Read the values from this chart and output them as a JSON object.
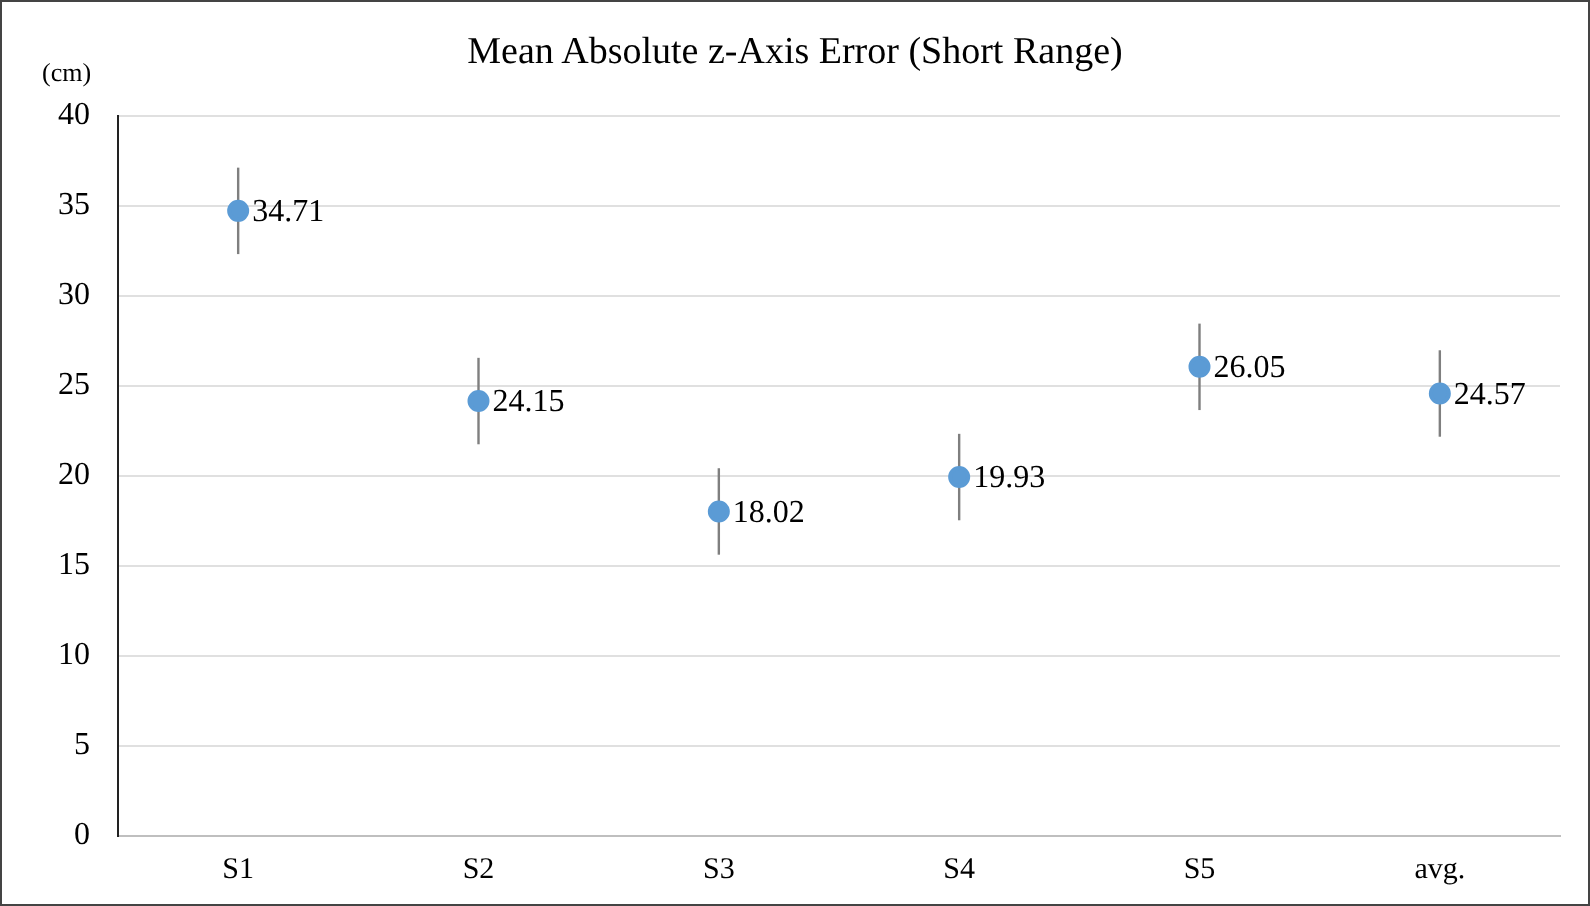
{
  "chart_data": {
    "type": "scatter",
    "title": "Mean Absolute z-Axis Error (Short Range)",
    "ylabel": "(cm)",
    "categories": [
      "S1",
      "S2",
      "S3",
      "S4",
      "S5",
      "avg."
    ],
    "values": [
      34.71,
      24.15,
      18.02,
      19.93,
      26.05,
      24.57
    ],
    "errors": [
      2.4,
      2.4,
      2.4,
      2.4,
      2.4,
      2.4
    ],
    "color": "#5b9bd5",
    "marker": "circle",
    "data_labels": true,
    "ylim": [
      0,
      40
    ],
    "yticks": [
      0,
      5,
      10,
      15,
      20,
      25,
      30,
      35,
      40
    ],
    "grid": "y",
    "legend": false
  }
}
